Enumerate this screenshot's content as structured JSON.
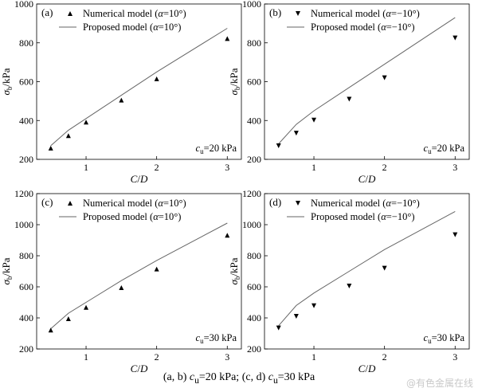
{
  "caption": {
    "prefix1": "(a, b) ",
    "c1": "c",
    "sub1": "u",
    "value1": "=20 kPa; (c, d) ",
    "c2": "c",
    "sub2": "u",
    "value2": "=30 kPa"
  },
  "watermark": "@有色金属在线",
  "chart_data": [
    {
      "type": "scatter+line",
      "panel": "(a)",
      "xlabel": "C/D",
      "ylabel": "σ_b/kPa",
      "xlim": [
        0.3,
        3.2
      ],
      "ylim": [
        200,
        1000
      ],
      "xticks": [
        1,
        2,
        3
      ],
      "yticks": [
        200,
        400,
        600,
        800,
        1000
      ],
      "marker": "triangle-up",
      "legend": {
        "placement": "top-left",
        "numerical": [
          "Numerical model (",
          "α",
          "=10°)"
        ],
        "proposed": [
          "Proposed model (",
          "α",
          "=10°)"
        ]
      },
      "annotation": {
        "c": "c",
        "sub": "u",
        "rest": "=20 kPa"
      },
      "series": [
        {
          "name": "Numerical model (α=10°)",
          "x": [
            0.5,
            0.75,
            1,
            1.5,
            2,
            3
          ],
          "y": [
            258,
            322,
            392,
            505,
            615,
            822
          ]
        },
        {
          "name": "Proposed model (α=10°)",
          "x": [
            0.5,
            0.75,
            1,
            1.5,
            2,
            3
          ],
          "y": [
            270,
            350,
            410,
            530,
            650,
            875
          ]
        }
      ]
    },
    {
      "type": "scatter+line",
      "panel": "(b)",
      "xlabel": "C/D",
      "ylabel": "σ_b/kPa",
      "xlim": [
        0.3,
        3.2
      ],
      "ylim": [
        200,
        1000
      ],
      "xticks": [
        1,
        2,
        3
      ],
      "yticks": [
        200,
        400,
        600,
        800,
        1000
      ],
      "marker": "triangle-down",
      "legend": {
        "placement": "top-left",
        "numerical": [
          "Numerical model (",
          "α",
          "=−10°)"
        ],
        "proposed": [
          "Proposed model (",
          "α",
          "=−10°)"
        ]
      },
      "annotation": {
        "c": "c",
        "sub": "u",
        "rest": "=20 kPa"
      },
      "series": [
        {
          "name": "Numerical model (α=−10°)",
          "x": [
            0.5,
            0.75,
            1,
            1.5,
            2,
            3
          ],
          "y": [
            270,
            335,
            402,
            510,
            620,
            825
          ]
        },
        {
          "name": "Proposed model (α=−10°)",
          "x": [
            0.5,
            0.75,
            1,
            1.5,
            2,
            3
          ],
          "y": [
            280,
            380,
            450,
            570,
            690,
            930
          ]
        }
      ]
    },
    {
      "type": "scatter+line",
      "panel": "(c)",
      "xlabel": "C/D",
      "ylabel": "σ_b/kPa",
      "xlim": [
        0.3,
        3.2
      ],
      "ylim": [
        200,
        1200
      ],
      "xticks": [
        1,
        2,
        3
      ],
      "yticks": [
        200,
        400,
        600,
        800,
        1000,
        1200
      ],
      "marker": "triangle-up",
      "legend": {
        "placement": "top-left",
        "numerical": [
          "Numerical model (",
          "α",
          "=10°)"
        ],
        "proposed": [
          "Proposed model (",
          "α",
          "=10°)"
        ]
      },
      "annotation": {
        "c": "c",
        "sub": "u",
        "rest": "=30 kPa"
      },
      "series": [
        {
          "name": "Numerical model (α=10°)",
          "x": [
            0.5,
            0.75,
            1,
            1.5,
            2,
            3
          ],
          "y": [
            322,
            395,
            468,
            595,
            715,
            932
          ]
        },
        {
          "name": "Proposed model (α=10°)",
          "x": [
            0.5,
            0.75,
            1,
            1.5,
            2,
            3
          ],
          "y": [
            330,
            430,
            500,
            640,
            770,
            1010
          ]
        }
      ]
    },
    {
      "type": "scatter+line",
      "panel": "(d)",
      "xlabel": "C/D",
      "ylabel": "σ_b/kPa",
      "xlim": [
        0.3,
        3.2
      ],
      "ylim": [
        200,
        1200
      ],
      "xticks": [
        1,
        2,
        3
      ],
      "yticks": [
        200,
        400,
        600,
        800,
        1000,
        1200
      ],
      "marker": "triangle-down",
      "legend": {
        "placement": "top-left",
        "numerical": [
          "Numerical model (",
          "α",
          "=−10°)"
        ],
        "proposed": [
          "Proposed model (",
          "α",
          "=−10°)"
        ]
      },
      "annotation": {
        "c": "c",
        "sub": "u",
        "rest": "=30 kPa"
      },
      "series": [
        {
          "name": "Numerical model (α=−10°)",
          "x": [
            0.5,
            0.75,
            1,
            1.5,
            2,
            3
          ],
          "y": [
            335,
            410,
            478,
            605,
            720,
            935
          ]
        },
        {
          "name": "Proposed model (α=−10°)",
          "x": [
            0.5,
            0.75,
            1,
            1.5,
            2,
            3
          ],
          "y": [
            350,
            480,
            560,
            700,
            840,
            1085
          ]
        }
      ]
    }
  ]
}
